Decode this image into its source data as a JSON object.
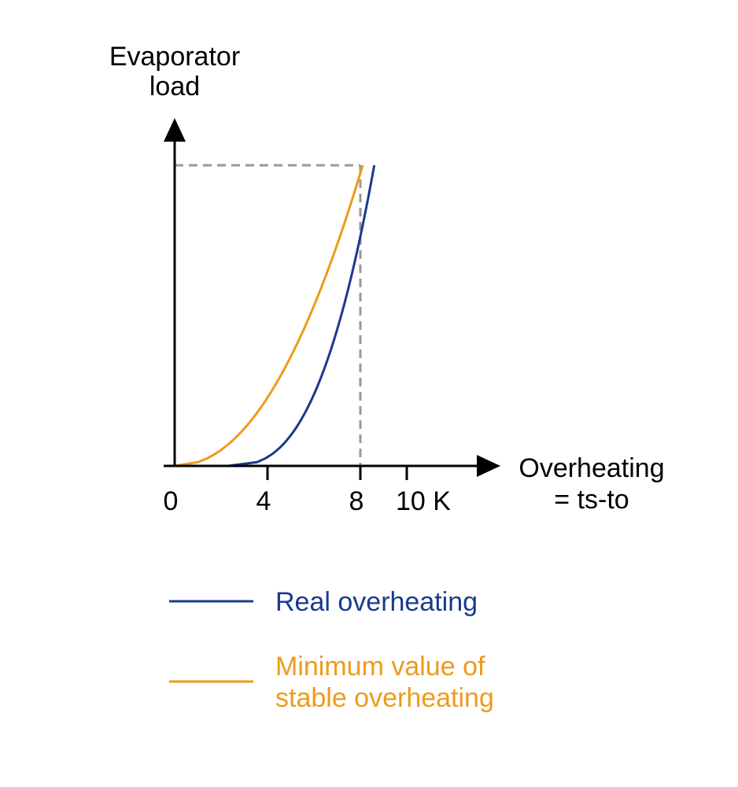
{
  "chart_data": {
    "type": "line",
    "title": "",
    "ylabel_lines": [
      "Evaporator",
      "load"
    ],
    "xlabel_lines": [
      "Overheating",
      "= ts-to"
    ],
    "xlim": [
      0,
      12
    ],
    "ylim": [
      0,
      1
    ],
    "x_ticks": [
      {
        "value": 0,
        "label": "0",
        "mark": false
      },
      {
        "value": 4,
        "label": "4",
        "mark": true
      },
      {
        "value": 8,
        "label": "8",
        "mark": true
      },
      {
        "value": 10,
        "label": "10 K",
        "mark": true
      }
    ],
    "reference_lines": {
      "x": 8,
      "y": 1
    },
    "grid": false,
    "legend_position": "bottom",
    "series": [
      {
        "name": "Real overheating",
        "color": "#1a3a8c",
        "x0": 2.3,
        "x1": 8.6,
        "exponent": 2.7
      },
      {
        "name": "Minimum value of stable overheating",
        "color": "#ef9a1a",
        "x0": 0,
        "x1": 8.1,
        "exponent": 2.1
      }
    ],
    "legend": [
      {
        "lines": [
          "Real overheating"
        ],
        "color": "#1a3a8c"
      },
      {
        "lines": [
          "Minimum value of",
          "stable overheating"
        ],
        "color": "#ef9a1a"
      }
    ]
  }
}
